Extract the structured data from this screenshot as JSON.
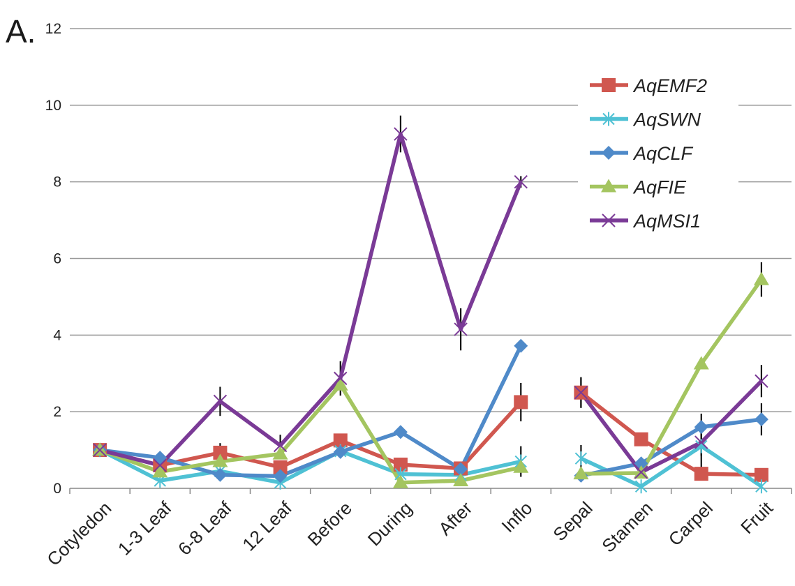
{
  "panel_label": "A.",
  "chart_data": {
    "type": "line",
    "title": "",
    "xlabel": "",
    "ylabel": "",
    "ylim": [
      0,
      12
    ],
    "yticks": [
      0,
      2,
      4,
      6,
      8,
      10,
      12
    ],
    "grid": true,
    "legend_position": "top-right",
    "categories": [
      "Cotyledon",
      "1-3 Leaf",
      "6-8 Leaf",
      "12 Leaf",
      "Before",
      "During",
      "After",
      "Inflo",
      "Sepal",
      "Stamen",
      "Carpel",
      "Fruit"
    ],
    "segments": [
      [
        0,
        7
      ],
      [
        8,
        11
      ]
    ],
    "series": [
      {
        "name": "AqEMF2",
        "color": "#d0574f",
        "marker": "square",
        "values": [
          1.0,
          0.6,
          0.93,
          0.55,
          1.25,
          0.62,
          0.52,
          2.25,
          2.5,
          1.28,
          0.38,
          0.35
        ],
        "errors": [
          0,
          0,
          0.25,
          0,
          0.15,
          0,
          0,
          0.5,
          0.4,
          0,
          0,
          0
        ]
      },
      {
        "name": "AqSWN",
        "color": "#4fc1d4",
        "marker": "asterisk",
        "values": [
          1.0,
          0.2,
          0.45,
          0.15,
          0.97,
          0.37,
          0.35,
          0.7,
          0.78,
          0.05,
          1.1,
          0.05
        ],
        "errors": [
          0,
          0,
          0,
          0,
          0,
          0,
          0,
          0.4,
          0.35,
          0,
          0.55,
          0
        ]
      },
      {
        "name": "AqCLF",
        "color": "#4f8ac9",
        "marker": "diamond",
        "values": [
          1.0,
          0.8,
          0.35,
          0.32,
          0.95,
          1.47,
          0.5,
          3.72,
          0.33,
          0.65,
          1.6,
          1.8
        ],
        "errors": [
          0,
          0,
          0,
          0,
          0,
          0.15,
          0,
          0,
          0,
          0,
          0.35,
          0.42
        ]
      },
      {
        "name": "AqFIE",
        "color": "#a4c560",
        "marker": "triangle",
        "values": [
          1.0,
          0.43,
          0.7,
          0.9,
          2.7,
          0.15,
          0.2,
          0.55,
          0.38,
          0.4,
          3.25,
          5.45
        ],
        "errors": [
          0,
          0,
          0,
          0,
          0,
          0,
          0,
          0,
          0,
          0,
          0,
          0.45
        ]
      },
      {
        "name": "AqMSI1",
        "color": "#7a3a96",
        "marker": "x",
        "values": [
          1.0,
          0.6,
          2.27,
          1.12,
          2.87,
          9.25,
          4.15,
          8.0,
          2.5,
          0.42,
          1.2,
          2.8
        ],
        "errors": [
          0,
          0,
          0.38,
          0.28,
          0.45,
          0.48,
          0.55,
          0.15,
          0.4,
          0,
          0.35,
          0.42
        ]
      }
    ]
  }
}
